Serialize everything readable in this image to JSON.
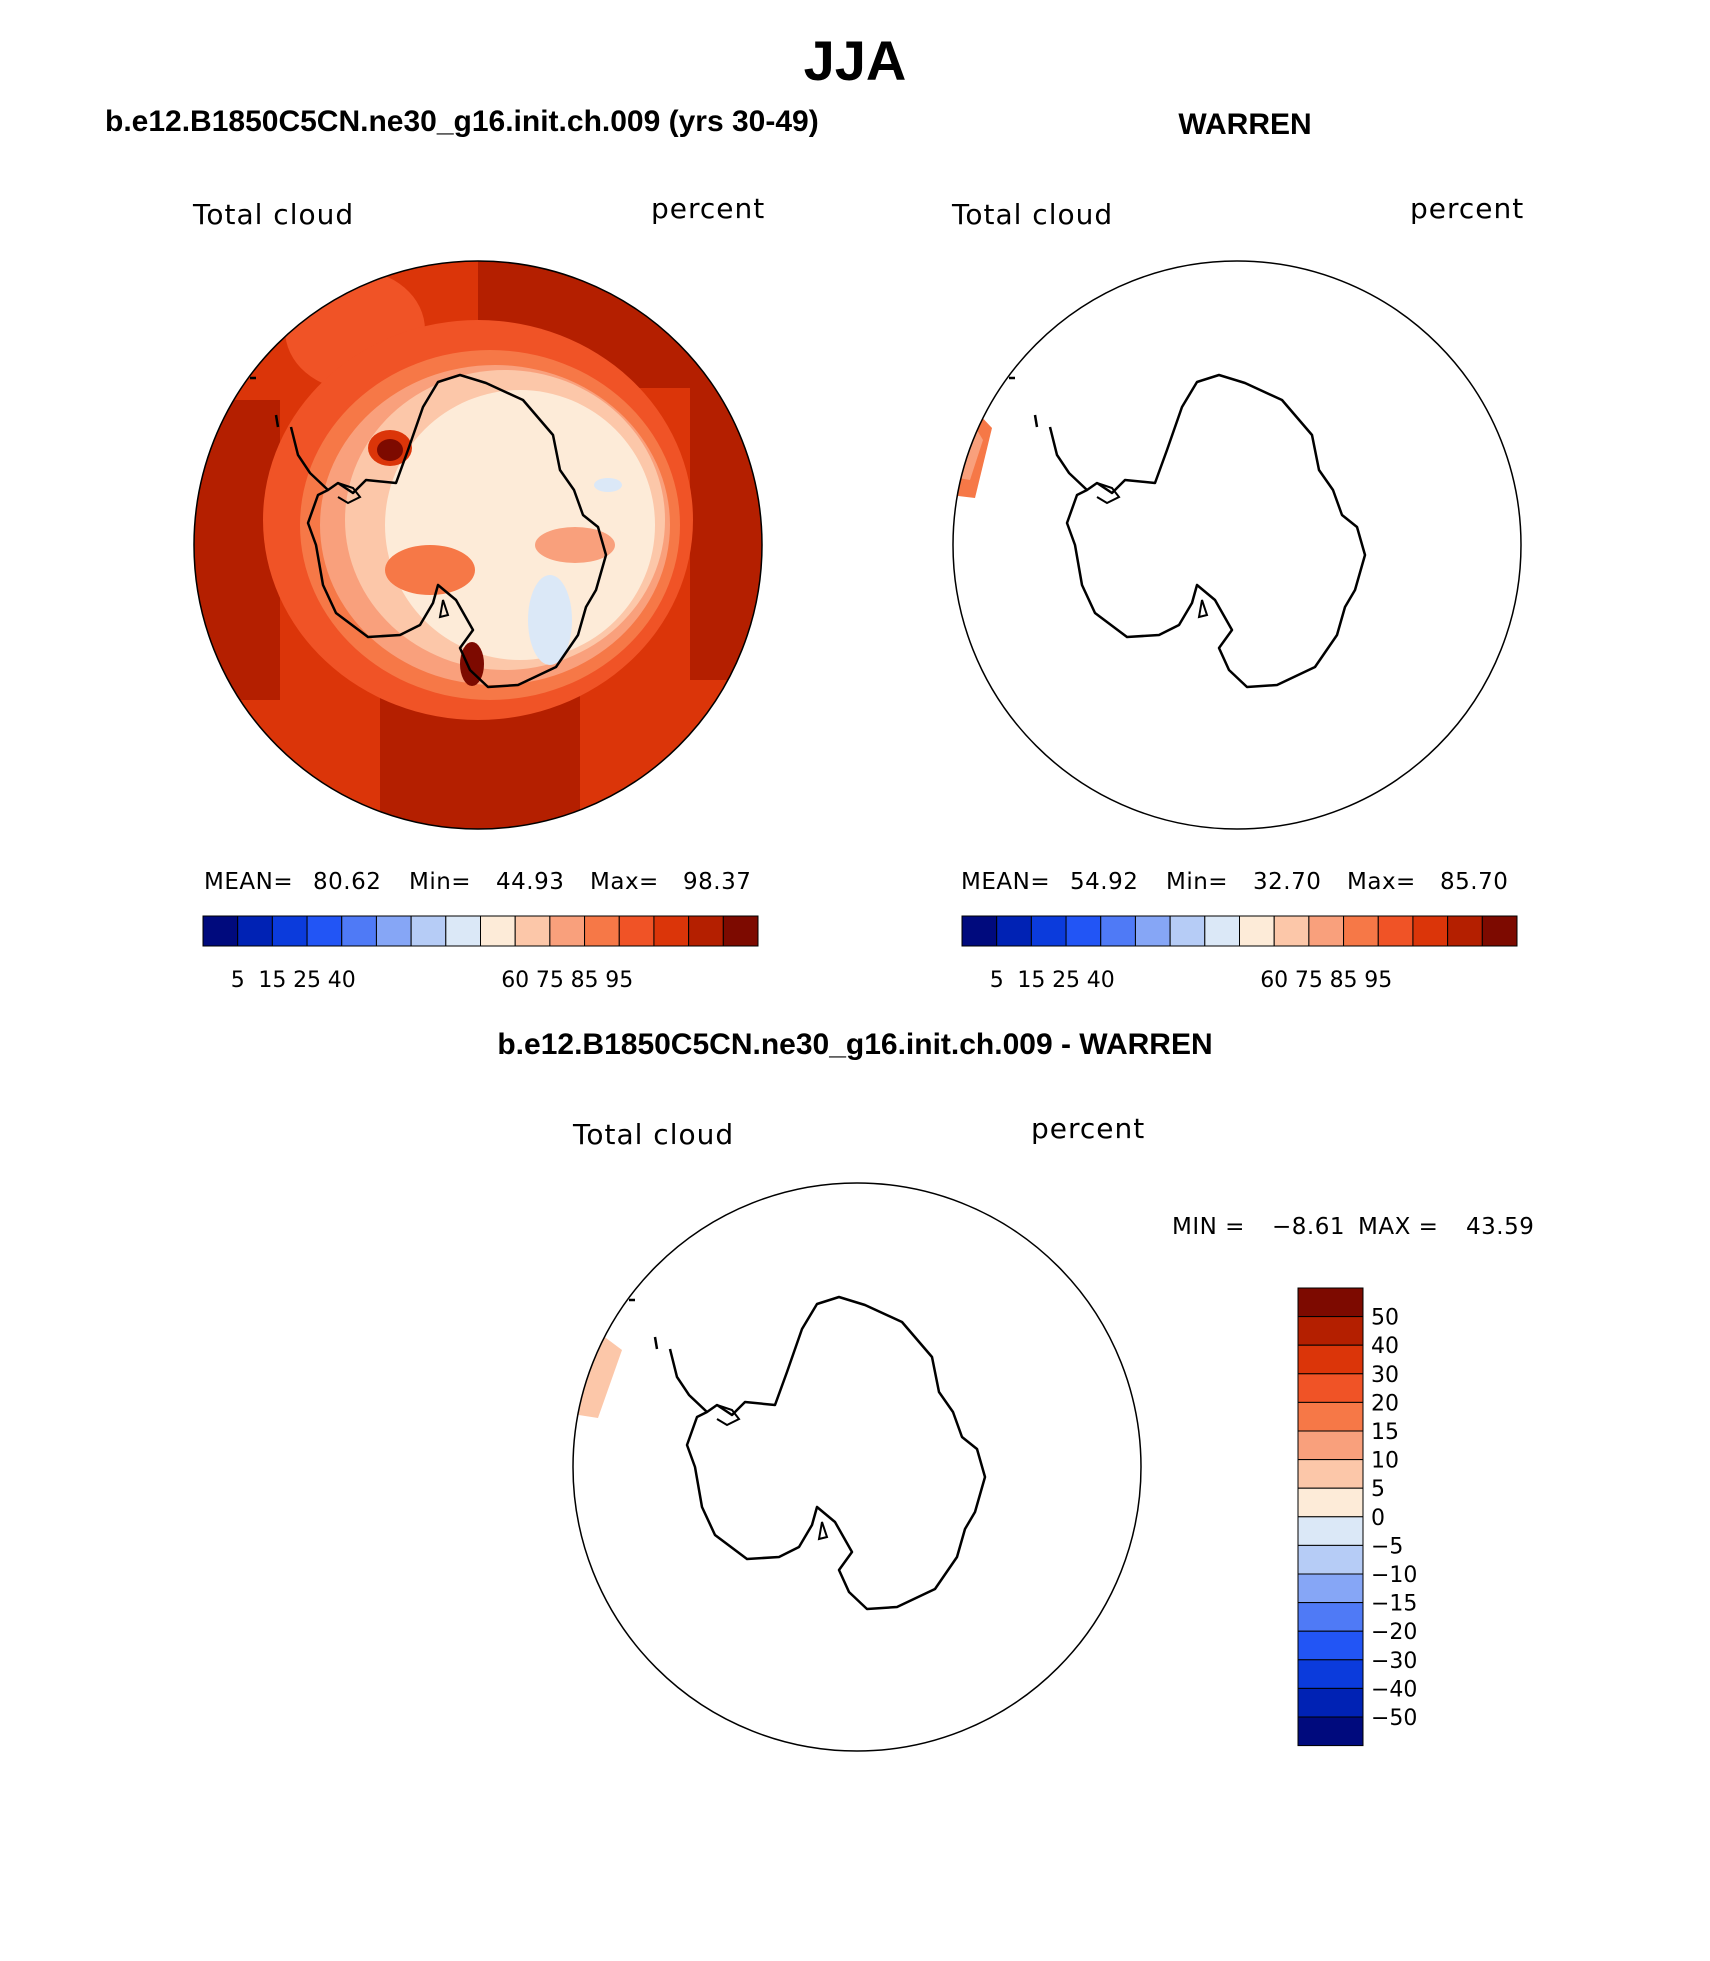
{
  "title": "JJA",
  "panels": [
    {
      "title": "b.e12.B1850C5CN.ne30_g16.init.ch.009 (yrs 30-49)",
      "left_label": "Total cloud",
      "right_label": "percent",
      "mean_label": "MEAN=",
      "mean": "80.62",
      "min_label": "Min=",
      "min": "44.93",
      "max_label": "Max=",
      "max": "98.37",
      "field": "filled",
      "colorbar_ticks": [
        "5",
        "15",
        "25",
        "40",
        "60",
        "75",
        "85",
        "95"
      ]
    },
    {
      "title": "WARREN",
      "left_label": "Total cloud",
      "right_label": "percent",
      "mean_label": "MEAN=",
      "mean": "54.92",
      "min_label": "Min=",
      "min": "32.70",
      "max_label": "Max=",
      "max": "85.70",
      "field": "sparse",
      "colorbar_ticks": [
        "5",
        "15",
        "25",
        "40",
        "60",
        "75",
        "85",
        "95"
      ]
    }
  ],
  "difference": {
    "title": "b.e12.B1850C5CN.ne30_g16.init.ch.009 - WARREN",
    "left_label": "Total cloud",
    "right_label": "percent",
    "min_label": "MIN =",
    "min": "−8.61",
    "max_label": "MAX =",
    "max": "43.59",
    "colorbar_ticks": [
      "50",
      "40",
      "30",
      "20",
      "15",
      "10",
      "5",
      "0",
      "−5",
      "−10",
      "−15",
      "−20",
      "−30",
      "−40",
      "−50"
    ]
  },
  "colors": {
    "abs_scale": [
      "#000a7d",
      "#0022b4",
      "#0b3bdc",
      "#2255f5",
      "#4f7af6",
      "#86a6f6",
      "#b6ccf6",
      "#dbe8f7",
      "#fdebd8",
      "#fcc7a9",
      "#f9a07c",
      "#f67847",
      "#f05326",
      "#db3509",
      "#b41f00",
      "#7d0a00"
    ],
    "diff_scale": [
      "#7d0a00",
      "#b41f00",
      "#db3509",
      "#f05326",
      "#f67847",
      "#f9a07c",
      "#fcc7a9",
      "#fdebd8",
      "#dbe8f7",
      "#b6ccf6",
      "#86a6f6",
      "#4f7af6",
      "#2255f5",
      "#0b3bdc",
      "#0022b4",
      "#000a7d"
    ]
  }
}
